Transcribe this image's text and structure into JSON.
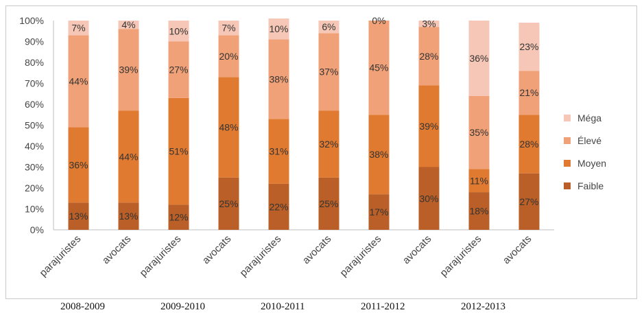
{
  "chart_data": {
    "type": "bar",
    "stacked": true,
    "normalized": true,
    "categories": [
      "parajuristes",
      "avocats",
      "parajuristes",
      "avocats",
      "parajuristes",
      "avocats",
      "parajuristes",
      "avocats",
      "parajuristes",
      "avocats"
    ],
    "groups": [
      "2008-2009",
      "2009-2010",
      "2010-2011",
      "2011-2012",
      "2012-2013"
    ],
    "series": [
      {
        "name": "Faible",
        "color": "#b95f27",
        "values": [
          13,
          13,
          12,
          25,
          22,
          25,
          17,
          30,
          18,
          27
        ]
      },
      {
        "name": "Moyen",
        "color": "#e07a31",
        "values": [
          36,
          44,
          51,
          48,
          31,
          32,
          38,
          39,
          11,
          28
        ]
      },
      {
        "name": "Élevé",
        "color": "#f1a178",
        "values": [
          44,
          39,
          27,
          20,
          38,
          37,
          45,
          28,
          35,
          21
        ]
      },
      {
        "name": "Méga",
        "color": "#f6c7b6",
        "values": [
          7,
          4,
          10,
          7,
          10,
          6,
          0,
          3,
          36,
          23
        ]
      }
    ],
    "yticks": [
      "0%",
      "10%",
      "20%",
      "30%",
      "40%",
      "50%",
      "60%",
      "70%",
      "80%",
      "90%",
      "100%"
    ],
    "ylim": [
      0,
      100
    ],
    "grid": false,
    "legend": "right"
  }
}
